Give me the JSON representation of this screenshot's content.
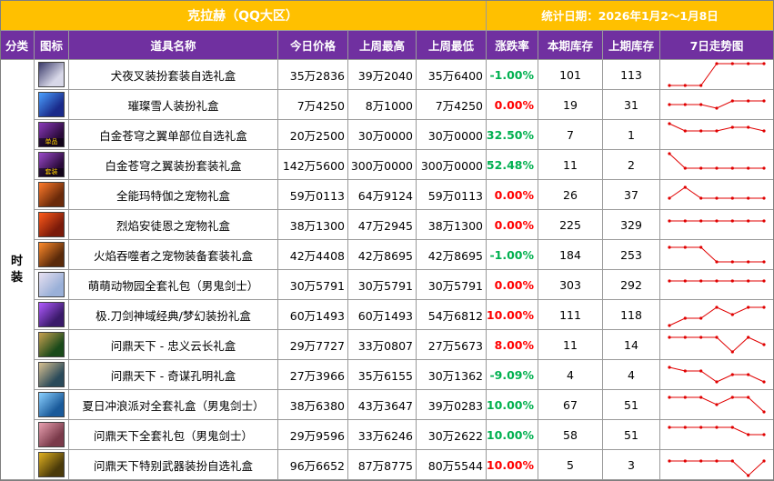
{
  "title": "克拉赫（QQ大区）",
  "date_label": "统计日期：2026年1月2～1月8日",
  "headers": [
    "分类",
    "图标",
    "道具名称",
    "今日价格",
    "上周最高",
    "上周最低",
    "涨跌率",
    "本期库存",
    "上期库存",
    "7日走势图"
  ],
  "category": "时装",
  "colors": {
    "header_bg": "#7030a0",
    "title_bg": "#ffc000",
    "up": "#ff0000",
    "down": "#00b050",
    "flat": "#ff0000",
    "trend": "#e00000"
  },
  "rows": [
    {
      "icon": "character-portrait-icon",
      "icon_colors": [
        "#d8d8e8",
        "#3a3a6a"
      ],
      "icon_tag": "",
      "name": "犬夜叉装扮套装自选礼盒",
      "today": "35万2836",
      "high": "39万2040",
      "low": "35万6400",
      "change": "-1.00%",
      "dir": "down",
      "stock_now": "101",
      "stock_prev": "113",
      "trend": [
        0,
        0,
        0,
        6,
        6,
        6,
        6
      ]
    },
    {
      "icon": "snowman-gift-icon",
      "icon_colors": [
        "#1a2a8a",
        "#4aa0ff"
      ],
      "icon_tag": "",
      "name": "璀璨雪人装扮礼盒",
      "today": "7万4250",
      "high": "8万1000",
      "low": "7万4250",
      "change": "0.00%",
      "dir": "flat",
      "stock_now": "19",
      "stock_prev": "31",
      "trend": [
        3,
        3,
        3,
        2,
        4,
        4,
        4
      ]
    },
    {
      "icon": "wing-box-icon",
      "icon_colors": [
        "#2a0a3a",
        "#8a3aba"
      ],
      "icon_tag": "单品",
      "name": "白金苍穹之翼单部位自选礼盒",
      "today": "20万2500",
      "high": "30万0000",
      "low": "30万0000",
      "change": "-32.50%",
      "dir": "down",
      "stock_now": "7",
      "stock_prev": "1",
      "trend": [
        6,
        4,
        4,
        4,
        5,
        5,
        4
      ]
    },
    {
      "icon": "wing-set-icon",
      "icon_colors": [
        "#2a0a3a",
        "#9a4aca"
      ],
      "icon_tag": "套装",
      "name": "白金苍穹之翼装扮套装礼盒",
      "today": "142万5600",
      "high": "300万0000",
      "low": "300万0000",
      "change": "-52.48%",
      "dir": "down",
      "stock_now": "11",
      "stock_prev": "2",
      "trend": [
        6,
        2,
        2,
        2,
        2,
        2,
        2
      ]
    },
    {
      "icon": "pet-gift-icon",
      "icon_colors": [
        "#6a2a0a",
        "#ff7a2a"
      ],
      "icon_tag": "",
      "name": "全能玛特伽之宠物礼盒",
      "today": "59万0113",
      "high": "64万9124",
      "low": "59万0113",
      "change": "0.00%",
      "dir": "flat",
      "stock_now": "26",
      "stock_prev": "37",
      "trend": [
        2,
        5,
        2,
        2,
        2,
        2,
        2
      ]
    },
    {
      "icon": "pet-gift-icon",
      "icon_colors": [
        "#7a1a0a",
        "#ff5a1a"
      ],
      "icon_tag": "",
      "name": "烈焰安徒恩之宠物礼盒",
      "today": "38万1300",
      "high": "47万2945",
      "low": "38万1300",
      "change": "0.00%",
      "dir": "flat",
      "stock_now": "225",
      "stock_prev": "329",
      "trend": [
        4,
        4,
        4,
        4,
        4,
        4,
        4
      ]
    },
    {
      "icon": "pet-equipment-icon",
      "icon_colors": [
        "#5a2a0a",
        "#ff8a2a"
      ],
      "icon_tag": "",
      "name": "火焰吞噬者之宠物装备套装礼盒",
      "today": "42万4408",
      "high": "42万8695",
      "low": "42万8695",
      "change": "-1.00%",
      "dir": "down",
      "stock_now": "184",
      "stock_prev": "253",
      "trend": [
        5,
        5,
        5,
        1,
        1,
        1,
        1
      ]
    },
    {
      "icon": "animal-park-icon",
      "icon_colors": [
        "#9ab0d8",
        "#e8e0f0"
      ],
      "icon_tag": "",
      "name": "萌萌动物园全套礼包（男鬼剑士）",
      "today": "30万5791",
      "high": "30万5791",
      "low": "30万5791",
      "change": "0.00%",
      "dir": "flat",
      "stock_now": "303",
      "stock_prev": "292",
      "trend": [
        4,
        4,
        4,
        4,
        4,
        4,
        4
      ]
    },
    {
      "icon": "sword-box-icon",
      "icon_colors": [
        "#3a1a6a",
        "#b05aff"
      ],
      "icon_tag": "",
      "name": "极.刀剑神域经典/梦幻装扮礼盒",
      "today": "60万1493",
      "high": "60万1493",
      "low": "54万6812",
      "change": "10.00%",
      "dir": "up",
      "stock_now": "111",
      "stock_prev": "118",
      "trend": [
        0,
        2,
        2,
        5,
        3,
        5,
        5
      ]
    },
    {
      "icon": "guan-yu-portrait-icon",
      "icon_colors": [
        "#1a4a1a",
        "#c8a050"
      ],
      "icon_tag": "",
      "name": "问鼎天下 - 忠义云长礼盒",
      "today": "29万7727",
      "high": "33万0807",
      "low": "27万5673",
      "change": "8.00%",
      "dir": "up",
      "stock_now": "11",
      "stock_prev": "14",
      "trend": [
        5,
        5,
        5,
        5,
        1,
        5,
        3
      ]
    },
    {
      "icon": "kongming-portrait-icon",
      "icon_colors": [
        "#2a4a5a",
        "#d8c090"
      ],
      "icon_tag": "",
      "name": "问鼎天下 - 奇谋孔明礼盒",
      "today": "27万3966",
      "high": "35万6155",
      "low": "30万1362",
      "change": "-9.09%",
      "dir": "down",
      "stock_now": "4",
      "stock_prev": "4",
      "trend": [
        5,
        4,
        4,
        1,
        3,
        3,
        1
      ]
    },
    {
      "icon": "summer-party-icon",
      "icon_colors": [
        "#1a5a9a",
        "#8ad0ff"
      ],
      "icon_tag": "",
      "name": "夏日冲浪派对全套礼盒（男鬼剑士）",
      "today": "38万6380",
      "high": "43万3647",
      "low": "39万0283",
      "change": "-10.00%",
      "dir": "down",
      "stock_now": "67",
      "stock_prev": "51",
      "trend": [
        5,
        5,
        5,
        3,
        5,
        5,
        1
      ]
    },
    {
      "icon": "gift-pack-icon",
      "icon_colors": [
        "#7a3a4a",
        "#e8a0b0"
      ],
      "icon_tag": "",
      "name": "问鼎天下全套礼包（男鬼剑士）",
      "today": "29万9596",
      "high": "33万6246",
      "low": "30万2622",
      "change": "-10.00%",
      "dir": "down",
      "stock_now": "58",
      "stock_prev": "51",
      "trend": [
        5,
        5,
        5,
        5,
        5,
        3,
        3
      ]
    },
    {
      "icon": "weapon-box-icon",
      "icon_colors": [
        "#4a3a0a",
        "#e0b020"
      ],
      "icon_tag": "",
      "name": "问鼎天下特别武器装扮自选礼盒",
      "today": "96万6652",
      "high": "87万8775",
      "low": "80万5544",
      "change": "10.00%",
      "dir": "up",
      "stock_now": "5",
      "stock_prev": "3",
      "trend": [
        4,
        4,
        4,
        4,
        4,
        0,
        4
      ]
    }
  ]
}
